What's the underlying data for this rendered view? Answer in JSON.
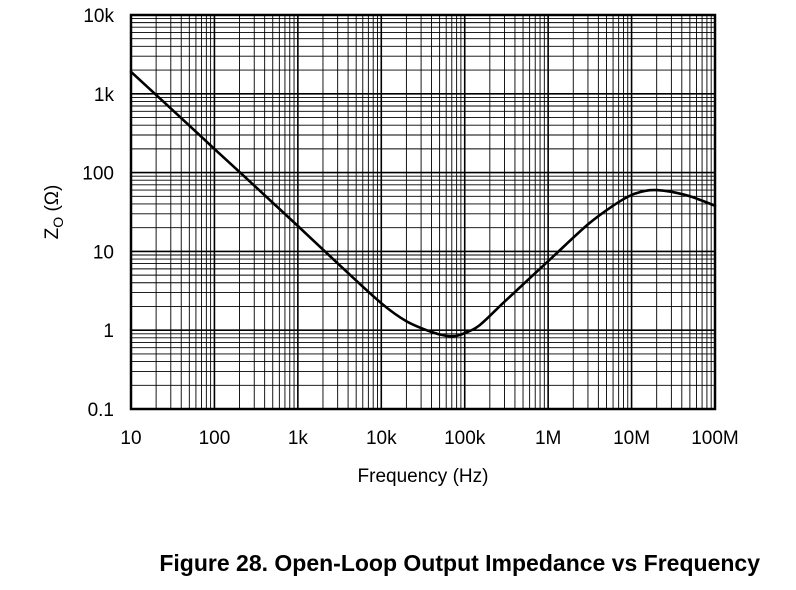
{
  "chart_data": {
    "type": "line",
    "xscale": "log",
    "yscale": "log",
    "xlim": [
      10,
      100000000
    ],
    "ylim": [
      0.1,
      10000
    ],
    "grid": true,
    "xlabel": "Frequency (Hz)",
    "ylabel_main": "Z",
    "ylabel_sub": "O",
    "ylabel_unit": " (Ω)",
    "x_ticks": [
      {
        "value": 10,
        "label": "10"
      },
      {
        "value": 100,
        "label": "100"
      },
      {
        "value": 1000,
        "label": "1k"
      },
      {
        "value": 10000,
        "label": "10k"
      },
      {
        "value": 100000,
        "label": "100k"
      },
      {
        "value": 1000000,
        "label": "1M"
      },
      {
        "value": 10000000,
        "label": "10M"
      },
      {
        "value": 100000000,
        "label": "100M"
      }
    ],
    "y_ticks": [
      {
        "value": 0.1,
        "label": "0.1"
      },
      {
        "value": 1,
        "label": "1"
      },
      {
        "value": 10,
        "label": "10"
      },
      {
        "value": 100,
        "label": "100"
      },
      {
        "value": 1000,
        "label": "1k"
      },
      {
        "value": 10000,
        "label": "10k"
      }
    ],
    "series": [
      {
        "x": [
          10,
          31.6,
          100,
          316,
          1000,
          3160,
          10000,
          20000,
          40000,
          60000,
          80000,
          100000,
          150000,
          300000,
          1000000,
          3000000,
          6000000,
          10000000,
          15000000,
          20000000,
          30000000,
          50000000,
          100000000
        ],
        "y": [
          1900,
          620,
          200,
          65,
          21,
          6.7,
          2.2,
          1.3,
          0.95,
          0.85,
          0.85,
          0.92,
          1.15,
          2.3,
          7.5,
          22,
          38,
          52,
          59,
          60,
          57,
          50,
          38
        ]
      }
    ]
  },
  "caption": "Figure 28. Open-Loop Output Impedance vs Frequency"
}
